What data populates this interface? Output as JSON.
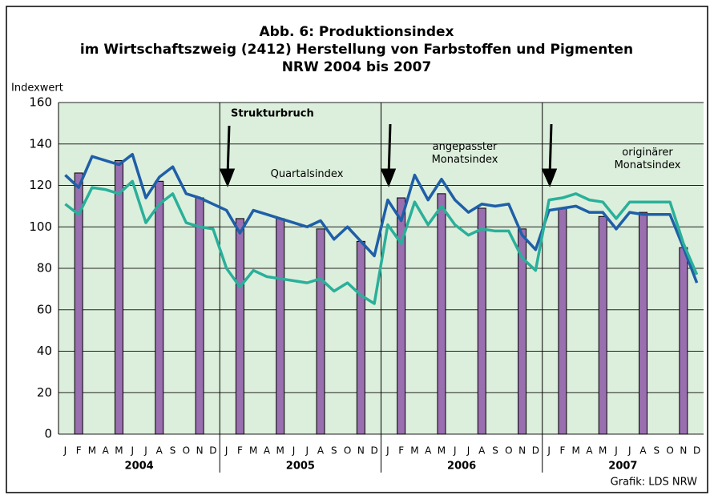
{
  "chart_data": {
    "type": "line",
    "title": [
      "Abb. 6: Produktionsindex",
      "im Wirtschaftszweig (2412) Herstellung von Farbstoffen und Pigmenten",
      "NRW 2004 bis 2007"
    ],
    "y_label": "Indexwert",
    "categories": [
      "J",
      "F",
      "M",
      "A",
      "M",
      "J",
      "J",
      "A",
      "S",
      "O",
      "N",
      "D",
      "J",
      "F",
      "M",
      "A",
      "M",
      "J",
      "J",
      "A",
      "S",
      "O",
      "N",
      "D",
      "J",
      "F",
      "M",
      "A",
      "M",
      "J",
      "J",
      "A",
      "S",
      "O",
      "N",
      "D",
      "J",
      "F",
      "M",
      "A",
      "M",
      "J",
      "J",
      "A",
      "S",
      "O",
      "N",
      "D"
    ],
    "years": [
      "2004",
      "2005",
      "2006",
      "2007"
    ],
    "series": [
      {
        "name": "Quartalsindex",
        "type": "bar",
        "color": "#9a6fb0",
        "values": [
          null,
          126,
          null,
          null,
          132,
          null,
          null,
          122,
          null,
          null,
          114,
          null,
          null,
          104,
          null,
          null,
          104,
          null,
          null,
          99,
          null,
          null,
          93,
          null,
          null,
          114,
          null,
          null,
          116,
          null,
          null,
          109,
          null,
          null,
          99,
          null,
          null,
          109,
          null,
          null,
          105,
          null,
          null,
          107,
          null,
          null,
          90,
          null
        ]
      },
      {
        "name": "angepasster Monatsindex",
        "type": "line",
        "color": "#1f5fa8",
        "values": [
          125,
          119,
          134,
          132,
          130,
          135,
          114,
          124,
          129,
          116,
          114,
          111,
          108,
          97,
          108,
          106,
          104,
          102,
          100,
          103,
          94,
          100,
          93,
          86,
          113,
          103,
          125,
          113,
          123,
          113,
          107,
          111,
          110,
          111,
          96,
          89,
          108,
          109,
          110,
          107,
          107,
          99,
          107,
          106,
          106,
          106,
          90,
          73
        ]
      },
      {
        "name": "originärer Monatsindex",
        "type": "line",
        "color": "#2ab09a",
        "values": [
          111,
          106,
          119,
          118,
          116,
          122,
          102,
          111,
          116,
          102,
          100,
          99,
          80,
          71,
          79,
          76,
          75,
          74,
          73,
          75,
          69,
          73,
          67,
          63,
          101,
          92,
          112,
          101,
          110,
          101,
          96,
          99,
          98,
          98,
          85,
          79,
          113,
          114,
          116,
          113,
          112,
          104,
          112,
          112,
          112,
          112,
          92,
          77
        ]
      }
    ],
    "annotation": "Strukturbruch",
    "source": "Grafik: LDS NRW",
    "ylim": [
      0,
      160
    ],
    "yticks": [
      0,
      20,
      40,
      60,
      80,
      100,
      120,
      140,
      160
    ],
    "grid": true
  }
}
